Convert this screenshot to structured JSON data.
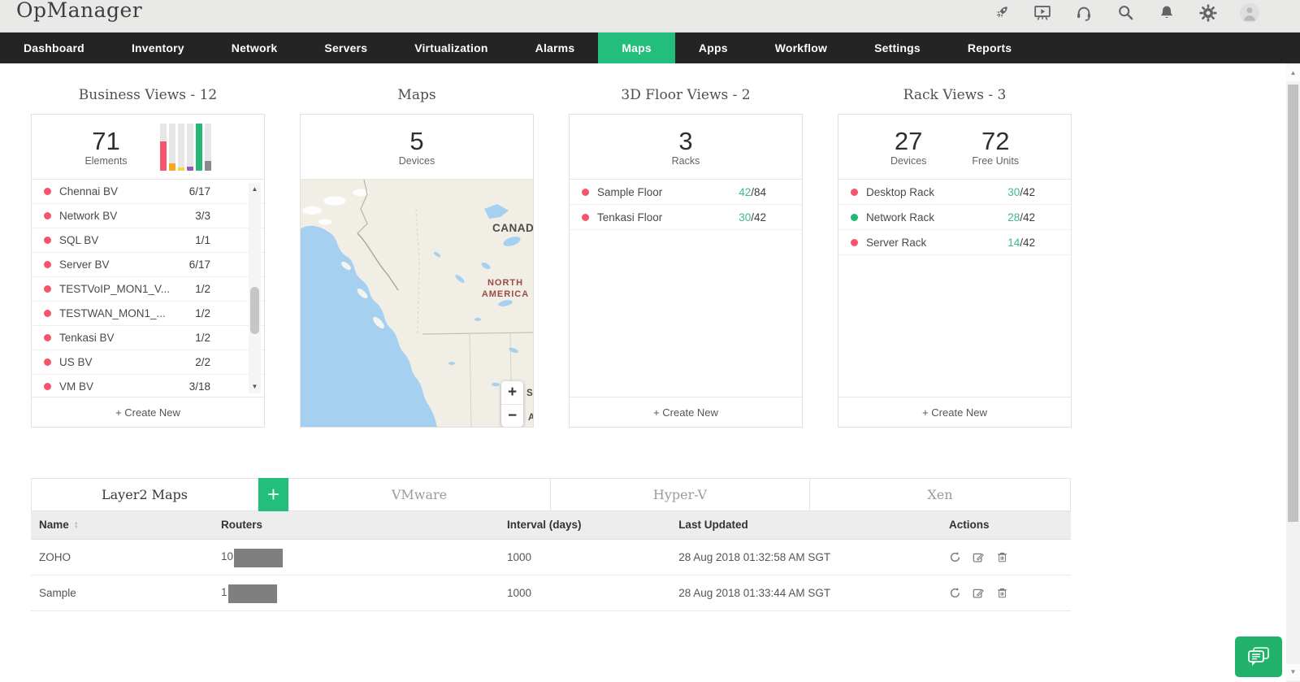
{
  "app": {
    "logo": "OpManager"
  },
  "topbar": {
    "icon_names": [
      "rocket",
      "demo-player",
      "support-headset",
      "search",
      "notification-bell",
      "settings-gear",
      "user-avatar"
    ]
  },
  "nav": {
    "items": [
      "Dashboard",
      "Inventory",
      "Network",
      "Servers",
      "Virtualization",
      "Alarms",
      "Maps",
      "Apps",
      "Workflow",
      "Settings",
      "Reports"
    ],
    "active_item": "Maps"
  },
  "colors": {
    "accent_green": "#23be7b",
    "status_red": "#f4556c",
    "status_green": "#23b873",
    "used_green": "#3bb98b",
    "nav_bg": "#242424"
  },
  "cards": {
    "business_views": {
      "title": "Business Views - 12",
      "stat": {
        "value": "71",
        "label": "Elements"
      },
      "mini_chart": {
        "type": "bar",
        "values": [
          62,
          14,
          6,
          8,
          100,
          20
        ],
        "colors": [
          "#f4556c",
          "#f5a623",
          "#f8d347",
          "#9b59b6",
          "#23b873",
          "#8a8a8a"
        ]
      },
      "items": [
        {
          "name": "Chennai BV",
          "ratio": "6/17",
          "status": "red"
        },
        {
          "name": "Network BV",
          "ratio": "3/3",
          "status": "red"
        },
        {
          "name": "SQL BV",
          "ratio": "1/1",
          "status": "red"
        },
        {
          "name": "Server BV",
          "ratio": "6/17",
          "status": "red"
        },
        {
          "name": "TESTVoIP_MON1_V...",
          "ratio": "1/2",
          "status": "red"
        },
        {
          "name": "TESTWAN_MON1_...",
          "ratio": "1/2",
          "status": "red"
        },
        {
          "name": "Tenkasi BV",
          "ratio": "1/2",
          "status": "red"
        },
        {
          "name": "US BV",
          "ratio": "2/2",
          "status": "red"
        },
        {
          "name": "VM BV",
          "ratio": "3/18",
          "status": "red"
        }
      ],
      "create_new": "+ Create New"
    },
    "maps": {
      "title": "Maps",
      "stat": {
        "value": "5",
        "label": "Devices"
      },
      "labels": {
        "country": "CANADA",
        "continent_line1": "NORTH",
        "continent_line2": "AMERICA",
        "clipped_1": "S",
        "clipped_2": "A"
      },
      "zoom_in": "+",
      "zoom_out": "−"
    },
    "floor_views": {
      "title": "3D Floor Views - 2",
      "stat": {
        "value": "3",
        "label": "Racks"
      },
      "items": [
        {
          "name": "Sample Floor",
          "used": "42",
          "rest": "/84",
          "status": "red"
        },
        {
          "name": "Tenkasi Floor",
          "used": "30",
          "rest": "/42",
          "status": "red"
        }
      ],
      "create_new": "+ Create New"
    },
    "rack_views": {
      "title": "Rack Views - 3",
      "stats": [
        {
          "value": "27",
          "label": "Devices"
        },
        {
          "value": "72",
          "label": "Free Units"
        }
      ],
      "items": [
        {
          "name": "Desktop Rack",
          "used": "30",
          "rest": "/42",
          "status": "red"
        },
        {
          "name": "Network Rack",
          "used": "28",
          "rest": "/42",
          "status": "green"
        },
        {
          "name": "Server Rack",
          "used": "14",
          "rest": "/42",
          "status": "red"
        }
      ],
      "create_new": "+ Create New"
    }
  },
  "maps_table": {
    "tabs": [
      {
        "label": "Layer2 Maps",
        "active": true
      },
      {
        "label": "VMware",
        "active": false
      },
      {
        "label": "Hyper-V",
        "active": false
      },
      {
        "label": "Xen",
        "active": false
      }
    ],
    "add_tab_label": "+",
    "columns": [
      "Name",
      "Routers",
      "Interval (days)",
      "Last Updated",
      "Actions"
    ],
    "rows": [
      {
        "name": "ZOHO",
        "routers_visible": "10",
        "routers_redacted": true,
        "interval": "1000",
        "last_updated": "28 Aug 2018 01:32:58 AM SGT"
      },
      {
        "name": "Sample",
        "routers_visible": "1",
        "routers_redacted": true,
        "interval": "1000",
        "last_updated": "28 Aug 2018 01:33:44 AM SGT"
      }
    ],
    "action_icon_names": [
      "refresh",
      "edit",
      "delete"
    ]
  }
}
